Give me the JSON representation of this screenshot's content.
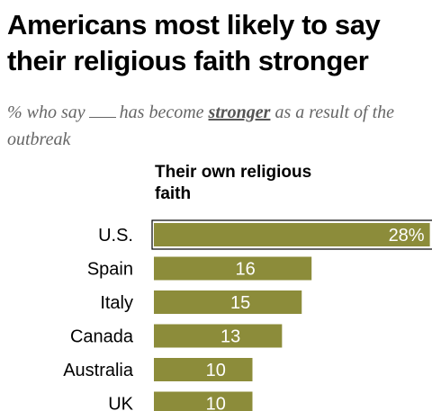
{
  "header": {
    "title": "Americans most likely to say their religious faith stronger",
    "subtitle_before": "% who say",
    "subtitle_middle": "has become",
    "subtitle_emph": "stronger",
    "subtitle_after": "as a result of the",
    "subtitle_line2": "outbreak"
  },
  "chart_data": {
    "type": "bar",
    "orientation": "horizontal",
    "column_header": "Their own religious faith",
    "categories": [
      "U.S.",
      "Spain",
      "Italy",
      "Canada",
      "Australia",
      "UK"
    ],
    "values": [
      28,
      16,
      15,
      13,
      10,
      10
    ],
    "value_labels": [
      "28%",
      "16",
      "15",
      "13",
      "10",
      "10"
    ],
    "highlight_category": "U.S.",
    "bar_color": "#8c8c3a",
    "highlight_border_color": "#000000",
    "grid": false
  }
}
